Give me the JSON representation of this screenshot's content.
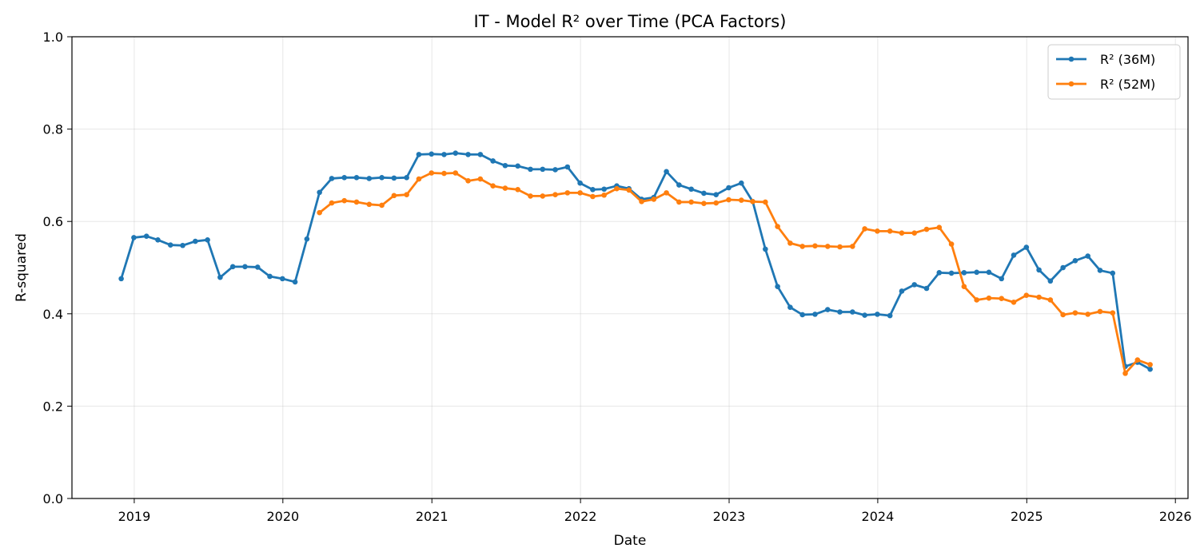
{
  "chart_data": {
    "type": "line",
    "title": "IT - Model R² over Time (PCA Factors)",
    "xlabel": "Date",
    "ylabel": "R-squared",
    "ylim": [
      0,
      1
    ],
    "xlim": [
      "2018-08-01",
      "2026-02-01"
    ],
    "x_ticks": [
      "2019",
      "2020",
      "2021",
      "2022",
      "2023",
      "2024",
      "2025",
      "2026"
    ],
    "y_ticks": [
      "0.0",
      "0.2",
      "0.4",
      "0.6",
      "0.8",
      "1.0"
    ],
    "grid": true,
    "legend_position": "top-right",
    "series": [
      {
        "name": "R² (36M)",
        "color": "#1f77b4",
        "x": [
          "2018-11-30",
          "2018-12-31",
          "2019-01-31",
          "2019-02-28",
          "2019-03-31",
          "2019-04-30",
          "2019-05-31",
          "2019-06-30",
          "2019-07-31",
          "2019-08-31",
          "2019-09-30",
          "2019-10-31",
          "2019-11-30",
          "2019-12-31",
          "2020-01-31",
          "2020-02-29",
          "2020-03-31",
          "2020-04-30",
          "2020-05-31",
          "2020-06-30",
          "2020-07-31",
          "2020-08-31",
          "2020-09-30",
          "2020-10-31",
          "2020-11-30",
          "2020-12-31",
          "2021-01-31",
          "2021-02-28",
          "2021-03-31",
          "2021-04-30",
          "2021-05-31",
          "2021-06-30",
          "2021-07-31",
          "2021-08-31",
          "2021-09-30",
          "2021-10-31",
          "2021-11-30",
          "2021-12-31",
          "2022-01-31",
          "2022-02-28",
          "2022-03-31",
          "2022-04-30",
          "2022-05-31",
          "2022-06-30",
          "2022-07-31",
          "2022-08-31",
          "2022-09-30",
          "2022-10-31",
          "2022-11-30",
          "2022-12-31",
          "2023-01-31",
          "2023-02-28",
          "2023-03-31",
          "2023-04-30",
          "2023-05-31",
          "2023-06-30",
          "2023-07-31",
          "2023-08-31",
          "2023-09-30",
          "2023-10-31",
          "2023-11-30",
          "2023-12-31",
          "2024-01-31",
          "2024-02-29",
          "2024-03-31",
          "2024-04-30",
          "2024-05-31",
          "2024-06-30",
          "2024-07-31",
          "2024-08-31",
          "2024-09-30",
          "2024-10-31",
          "2024-11-30",
          "2024-12-31",
          "2025-01-31",
          "2025-02-28",
          "2025-03-31",
          "2025-04-30",
          "2025-05-31",
          "2025-06-30",
          "2025-07-31",
          "2025-08-31",
          "2025-09-30",
          "2025-10-31"
        ],
        "values": [
          0.476,
          0.565,
          0.568,
          0.56,
          0.549,
          0.548,
          0.557,
          0.56,
          0.479,
          0.502,
          0.502,
          0.501,
          0.481,
          0.476,
          0.469,
          0.562,
          0.663,
          0.693,
          0.695,
          0.695,
          0.693,
          0.695,
          0.694,
          0.695,
          0.745,
          0.746,
          0.745,
          0.748,
          0.745,
          0.745,
          0.731,
          0.721,
          0.72,
          0.713,
          0.713,
          0.712,
          0.718,
          0.683,
          0.669,
          0.67,
          0.677,
          0.671,
          0.648,
          0.652,
          0.708,
          0.679,
          0.67,
          0.661,
          0.658,
          0.673,
          0.683,
          0.643,
          0.54,
          0.459,
          0.414,
          0.398,
          0.399,
          0.409,
          0.404,
          0.404,
          0.397,
          0.399,
          0.396,
          0.449,
          0.463,
          0.455,
          0.489,
          0.488,
          0.489,
          0.49,
          0.49,
          0.476,
          0.527,
          0.544,
          0.495,
          0.471,
          0.5,
          0.515,
          0.525,
          0.494,
          0.488,
          0.286,
          0.295,
          0.28
        ]
      },
      {
        "name": "R² (52M)",
        "color": "#ff7f0e",
        "x": [
          "2020-03-31",
          "2020-04-30",
          "2020-05-31",
          "2020-06-30",
          "2020-07-31",
          "2020-08-31",
          "2020-09-30",
          "2020-10-31",
          "2020-11-30",
          "2020-12-31",
          "2021-01-31",
          "2021-02-28",
          "2021-03-31",
          "2021-04-30",
          "2021-05-31",
          "2021-06-30",
          "2021-07-31",
          "2021-08-31",
          "2021-09-30",
          "2021-10-31",
          "2021-11-30",
          "2021-12-31",
          "2022-01-31",
          "2022-02-28",
          "2022-03-31",
          "2022-04-30",
          "2022-05-31",
          "2022-06-30",
          "2022-07-31",
          "2022-08-31",
          "2022-09-30",
          "2022-10-31",
          "2022-11-30",
          "2022-12-31",
          "2023-01-31",
          "2023-02-28",
          "2023-03-31",
          "2023-04-30",
          "2023-05-31",
          "2023-06-30",
          "2023-07-31",
          "2023-08-31",
          "2023-09-30",
          "2023-10-31",
          "2023-11-30",
          "2023-12-31",
          "2024-01-31",
          "2024-02-29",
          "2024-03-31",
          "2024-04-30",
          "2024-05-31",
          "2024-06-30",
          "2024-07-31",
          "2024-08-31",
          "2024-09-30",
          "2024-10-31",
          "2024-11-30",
          "2024-12-31",
          "2025-01-31",
          "2025-02-28",
          "2025-03-31",
          "2025-04-30",
          "2025-05-31",
          "2025-06-30",
          "2025-07-31",
          "2025-08-31",
          "2025-09-30",
          "2025-10-31"
        ],
        "values": [
          0.619,
          0.64,
          0.645,
          0.642,
          0.637,
          0.635,
          0.656,
          0.658,
          0.692,
          0.705,
          0.704,
          0.705,
          0.688,
          0.692,
          0.677,
          0.672,
          0.669,
          0.655,
          0.655,
          0.658,
          0.662,
          0.662,
          0.654,
          0.657,
          0.671,
          0.668,
          0.643,
          0.648,
          0.662,
          0.642,
          0.642,
          0.639,
          0.64,
          0.647,
          0.646,
          0.643,
          0.642,
          0.589,
          0.553,
          0.546,
          0.547,
          0.546,
          0.545,
          0.546,
          0.584,
          0.579,
          0.579,
          0.575,
          0.575,
          0.583,
          0.587,
          0.551,
          0.459,
          0.43,
          0.434,
          0.433,
          0.425,
          0.44,
          0.436,
          0.43,
          0.398,
          0.402,
          0.399,
          0.405,
          0.402,
          0.271,
          0.3,
          0.29
        ]
      }
    ]
  }
}
